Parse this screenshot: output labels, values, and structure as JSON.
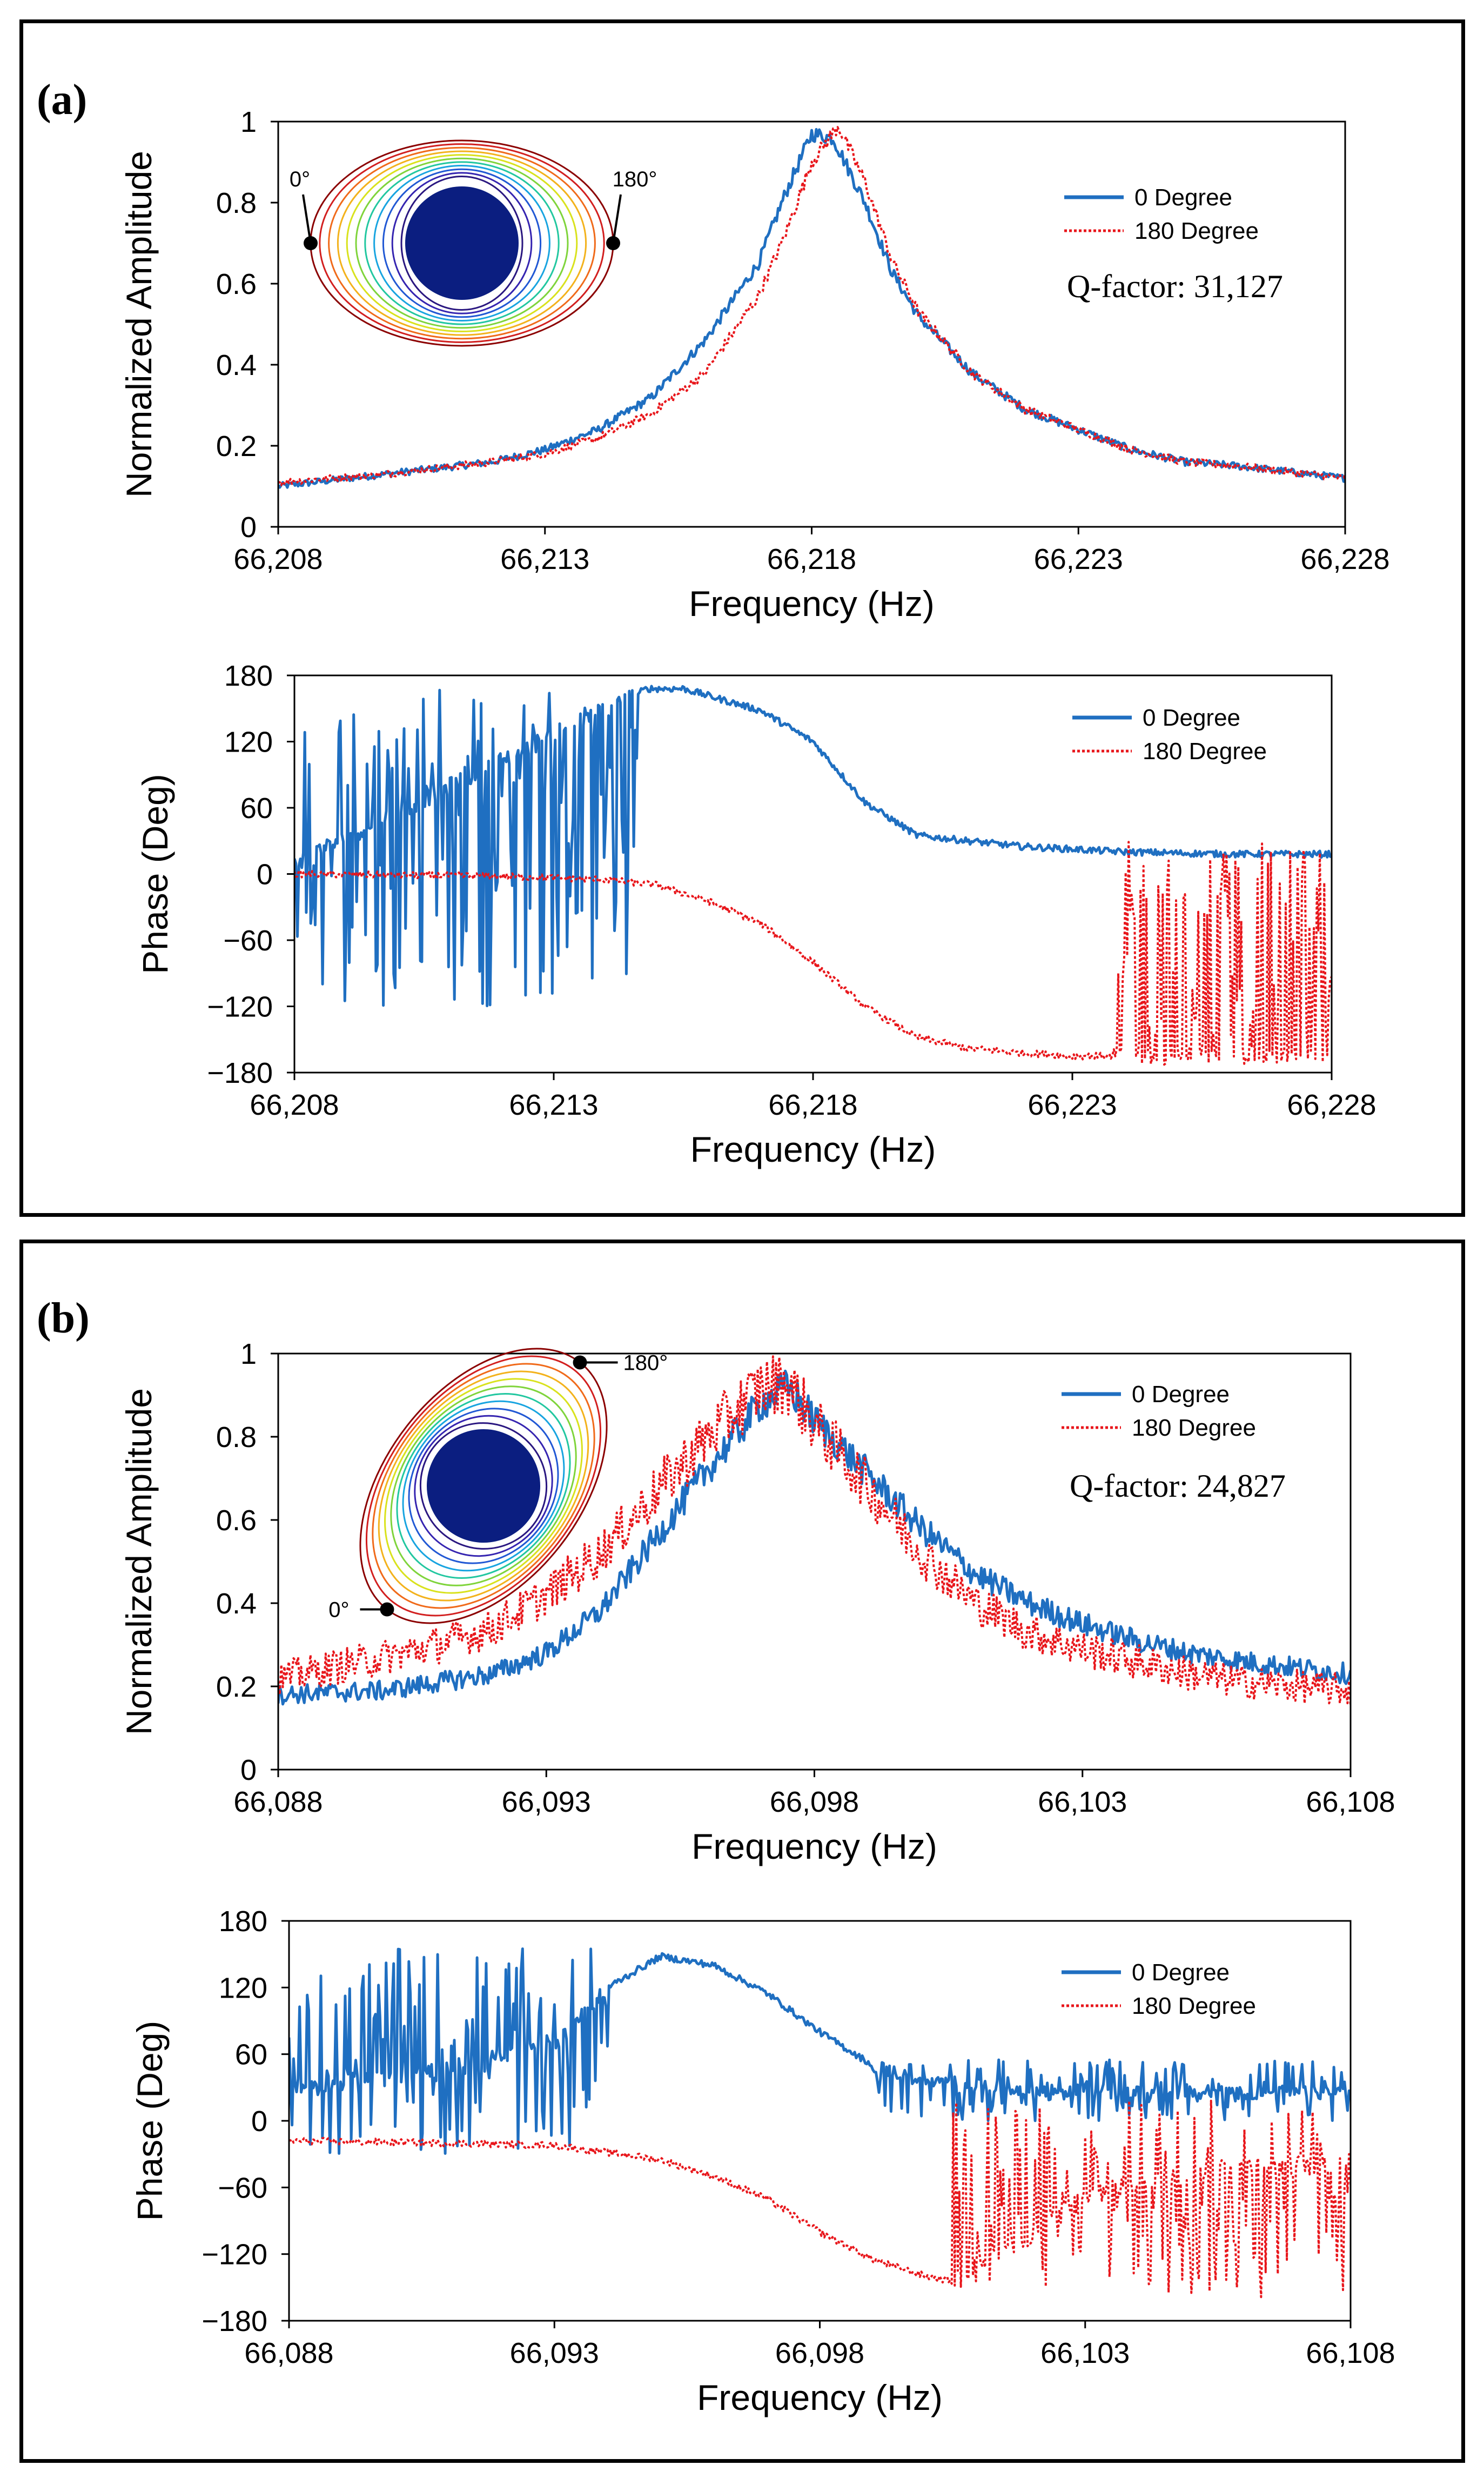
{
  "panels": [
    {
      "label": "(a)",
      "inset": {
        "label_left": "0°",
        "label_right": "180°",
        "orientation": "horizontal"
      },
      "q_factor": "Q-factor: 31,127",
      "amplitude_chart": {
        "type": "line",
        "xlabel": "Frequency (Hz)",
        "ylabel": "Normalized Amplitude",
        "xlim": [
          66208,
          66228
        ],
        "ylim": [
          0,
          1
        ],
        "x_ticks": [
          "66,208",
          "66,213",
          "66,218",
          "66,223",
          "66,228"
        ],
        "y_ticks": [
          "0",
          "0.2",
          "0.4",
          "0.6",
          "0.8",
          "1"
        ],
        "series": [
          {
            "name": "0 Degree",
            "style": "solid",
            "color": "#1f6fc1",
            "noise": 0.012,
            "points": [
              [
                66208,
                0.1
              ],
              [
                66210,
                0.13
              ],
              [
                66212,
                0.16
              ],
              [
                66213,
                0.19
              ],
              [
                66214,
                0.24
              ],
              [
                66215,
                0.32
              ],
              [
                66216,
                0.46
              ],
              [
                66217,
                0.65
              ],
              [
                66217.5,
                0.82
              ],
              [
                66218,
                0.97
              ],
              [
                66218.4,
                0.96
              ],
              [
                66219,
                0.8
              ],
              [
                66219.5,
                0.63
              ],
              [
                66220,
                0.52
              ],
              [
                66221,
                0.38
              ],
              [
                66222,
                0.29
              ],
              [
                66223,
                0.24
              ],
              [
                66224,
                0.19
              ],
              [
                66225,
                0.16
              ],
              [
                66226,
                0.15
              ],
              [
                66228,
                0.12
              ]
            ]
          },
          {
            "name": "180 Degree",
            "style": "dotted",
            "color": "#e8161b",
            "noise": 0.012,
            "points": [
              [
                66208,
                0.11
              ],
              [
                66210,
                0.13
              ],
              [
                66212,
                0.16
              ],
              [
                66213,
                0.18
              ],
              [
                66214,
                0.22
              ],
              [
                66215,
                0.28
              ],
              [
                66216,
                0.38
              ],
              [
                66217,
                0.57
              ],
              [
                66217.5,
                0.72
              ],
              [
                66218,
                0.9
              ],
              [
                66218.5,
                0.99
              ],
              [
                66219,
                0.85
              ],
              [
                66219.5,
                0.66
              ],
              [
                66220,
                0.53
              ],
              [
                66221,
                0.38
              ],
              [
                66222,
                0.29
              ],
              [
                66223,
                0.24
              ],
              [
                66224,
                0.19
              ],
              [
                66225,
                0.16
              ],
              [
                66226,
                0.15
              ],
              [
                66228,
                0.12
              ]
            ]
          }
        ]
      },
      "phase_chart": {
        "type": "line",
        "xlabel": "Frequency (Hz)",
        "ylabel": "Phase (Deg)",
        "xlim": [
          66208,
          66228
        ],
        "ylim": [
          -180,
          180
        ],
        "x_ticks": [
          "66,208",
          "66,213",
          "66,218",
          "66,223",
          "66,228"
        ],
        "y_ticks": [
          "-180",
          "-120",
          "-60",
          "0",
          "60",
          "120",
          "180"
        ],
        "series": [
          {
            "name": "0 Degree",
            "style": "solid",
            "color": "#1f6fc1",
            "points": [
              [
                66208,
                10
              ],
              [
                66214.8,
                168
              ],
              [
                66215.5,
                168
              ],
              [
                66217,
                148
              ],
              [
                66218,
                120
              ],
              [
                66219,
                65
              ],
              [
                66220,
                35
              ],
              [
                66222,
                25
              ],
              [
                66224,
                20
              ],
              [
                66226,
                18
              ],
              [
                66228,
                18
              ]
            ],
            "noise_segments": [
              {
                "from": 66208,
                "to": 66214.6,
                "lo": -120,
                "hi": 168,
                "amp": 8
              }
            ]
          },
          {
            "name": "180 Degree",
            "style": "dotted",
            "color": "#e8161b",
            "points": [
              [
                66208,
                0
              ],
              [
                66212,
                -2
              ],
              [
                66214,
                -5
              ],
              [
                66215,
                -10
              ],
              [
                66216,
                -25
              ],
              [
                66217,
                -45
              ],
              [
                66218,
                -80
              ],
              [
                66219,
                -120
              ],
              [
                66220,
                -148
              ],
              [
                66221,
                -158
              ],
              [
                66222,
                -162
              ],
              [
                66223,
                -165
              ],
              [
                66228,
                -165
              ]
            ],
            "noise_segments": [
              {
                "from": 66223.8,
                "to": 66228,
                "lo": -170,
                "hi": 30,
                "amp": 8
              }
            ]
          }
        ]
      }
    },
    {
      "label": "(b)",
      "inset": {
        "label_left": "0°",
        "label_right": "180°",
        "orientation": "tilted"
      },
      "q_factor": "Q-factor: 24,827",
      "amplitude_chart": {
        "type": "line",
        "xlabel": "Frequency (Hz)",
        "ylabel": "Normalized Amplitude",
        "xlim": [
          66088,
          66108
        ],
        "ylim": [
          0,
          1
        ],
        "x_ticks": [
          "66,088",
          "66,093",
          "66,098",
          "66,103",
          "66,108"
        ],
        "y_ticks": [
          "0",
          "0.2",
          "0.4",
          "0.6",
          "0.8",
          "1"
        ],
        "series": [
          {
            "name": "0 Degree",
            "style": "solid",
            "color": "#1f6fc1",
            "noise": 0.03,
            "points": [
              [
                66088,
                0.18
              ],
              [
                66090,
                0.19
              ],
              [
                66092,
                0.23
              ],
              [
                66093,
                0.28
              ],
              [
                66094,
                0.38
              ],
              [
                66095,
                0.55
              ],
              [
                66096,
                0.72
              ],
              [
                66097,
                0.88
              ],
              [
                66097.5,
                0.92
              ],
              [
                66098,
                0.84
              ],
              [
                66099,
                0.71
              ],
              [
                66100,
                0.58
              ],
              [
                66101,
                0.47
              ],
              [
                66102,
                0.4
              ],
              [
                66103,
                0.35
              ],
              [
                66104,
                0.31
              ],
              [
                66105,
                0.28
              ],
              [
                66106,
                0.26
              ],
              [
                66108,
                0.23
              ]
            ]
          },
          {
            "name": "180 Degree",
            "style": "dotted",
            "color": "#e8161b",
            "noise": 0.05,
            "points": [
              [
                66088,
                0.22
              ],
              [
                66090,
                0.27
              ],
              [
                66091,
                0.3
              ],
              [
                66092,
                0.34
              ],
              [
                66093,
                0.42
              ],
              [
                66094,
                0.52
              ],
              [
                66095,
                0.66
              ],
              [
                66096,
                0.8
              ],
              [
                66097,
                0.92
              ],
              [
                66097.5,
                0.93
              ],
              [
                66098,
                0.83
              ],
              [
                66099,
                0.68
              ],
              [
                66100,
                0.52
              ],
              [
                66101,
                0.4
              ],
              [
                66102,
                0.33
              ],
              [
                66103,
                0.29
              ],
              [
                66104,
                0.26
              ],
              [
                66105,
                0.23
              ],
              [
                66106,
                0.21
              ],
              [
                66108,
                0.19
              ]
            ]
          }
        ]
      },
      "phase_chart": {
        "type": "line",
        "xlabel": "Frequency (Hz)",
        "ylabel": "Phase (Deg)",
        "xlim": [
          66088,
          66108
        ],
        "ylim": [
          -180,
          180
        ],
        "x_ticks": [
          "66,088",
          "66,093",
          "66,098",
          "66,103",
          "66,108"
        ],
        "y_ticks": [
          "-180",
          "-120",
          "-60",
          "0",
          "60",
          "120",
          "180"
        ],
        "series": [
          {
            "name": "0 Degree",
            "style": "solid",
            "color": "#1f6fc1",
            "points": [
              [
                66088,
                30
              ],
              [
                66091,
                45
              ],
              [
                66093,
                70
              ],
              [
                66094,
                120
              ],
              [
                66095,
                148
              ],
              [
                66096,
                140
              ],
              [
                66097,
                115
              ],
              [
                66098,
                80
              ],
              [
                66099,
                50
              ],
              [
                66100,
                35
              ],
              [
                66102,
                28
              ],
              [
                66104,
                25
              ],
              [
                66108,
                25
              ]
            ],
            "noise_segments": [
              {
                "from": 66088,
                "to": 66094,
                "lo": -30,
                "hi": 155,
                "amp": 8
              },
              {
                "from": 66099,
                "to": 66108,
                "lo": 0,
                "hi": 55,
                "amp": 6
              }
            ]
          },
          {
            "name": "180 Degree",
            "style": "dotted",
            "color": "#e8161b",
            "points": [
              [
                66088,
                -18
              ],
              [
                66091,
                -20
              ],
              [
                66093,
                -22
              ],
              [
                66095,
                -35
              ],
              [
                66096,
                -50
              ],
              [
                66097,
                -70
              ],
              [
                66098,
                -100
              ],
              [
                66099,
                -125
              ],
              [
                66100,
                -140
              ],
              [
                66100.6,
                -145
              ],
              [
                66101,
                -125
              ],
              [
                66102,
                -100
              ],
              [
                66103,
                -70
              ],
              [
                66104,
                -55
              ],
              [
                66105,
                -45
              ],
              [
                66106,
                -40
              ],
              [
                66108,
                -38
              ]
            ],
            "noise_segments": [
              {
                "from": 66100.5,
                "to": 66108,
                "lo": -160,
                "hi": 20,
                "amp": 10
              }
            ]
          }
        ]
      }
    }
  ]
}
